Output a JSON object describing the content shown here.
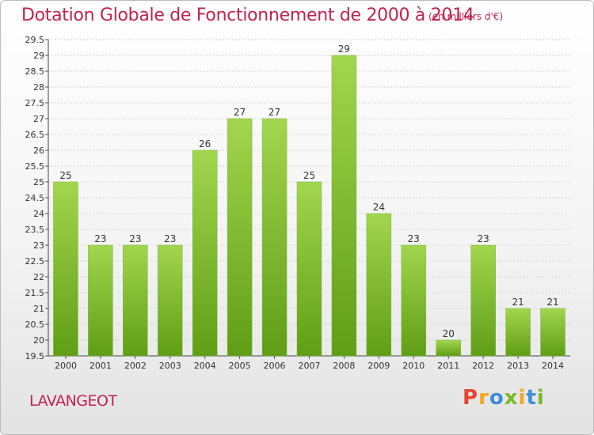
{
  "header": {
    "title": "Dotation Globale de Fonctionnement de 2000 à 2014",
    "unit": "(en milliers d'€)"
  },
  "footer": {
    "commune": "LAVANGEOT",
    "logo": {
      "letters": [
        "P",
        "r",
        "o",
        "x",
        "i",
        "t",
        "i"
      ],
      "colors": [
        "#e8442e",
        "#f5a623",
        "#3d8fd6",
        "#7ab929",
        "#f5a623",
        "#3d8fd6",
        "#7ab929"
      ]
    }
  },
  "chart_data": {
    "type": "bar",
    "categories": [
      "2000",
      "2001",
      "2002",
      "2003",
      "2004",
      "2005",
      "2006",
      "2007",
      "2008",
      "2009",
      "2010",
      "2011",
      "2012",
      "2013",
      "2014"
    ],
    "values": [
      25,
      23,
      23,
      23,
      26,
      27,
      27,
      25,
      29,
      24,
      23,
      20,
      23,
      21,
      21
    ],
    "ylim": [
      19.5,
      29.5
    ],
    "yticks": [
      "19.5",
      "20",
      "20.5",
      "21",
      "21.5",
      "22",
      "22.5",
      "23",
      "23.5",
      "24",
      "24.5",
      "25",
      "25.5",
      "26",
      "26.5",
      "27",
      "27.5",
      "28",
      "28.5",
      "29",
      "29.5"
    ],
    "grid": true,
    "bar_color": "#8cc63f"
  }
}
